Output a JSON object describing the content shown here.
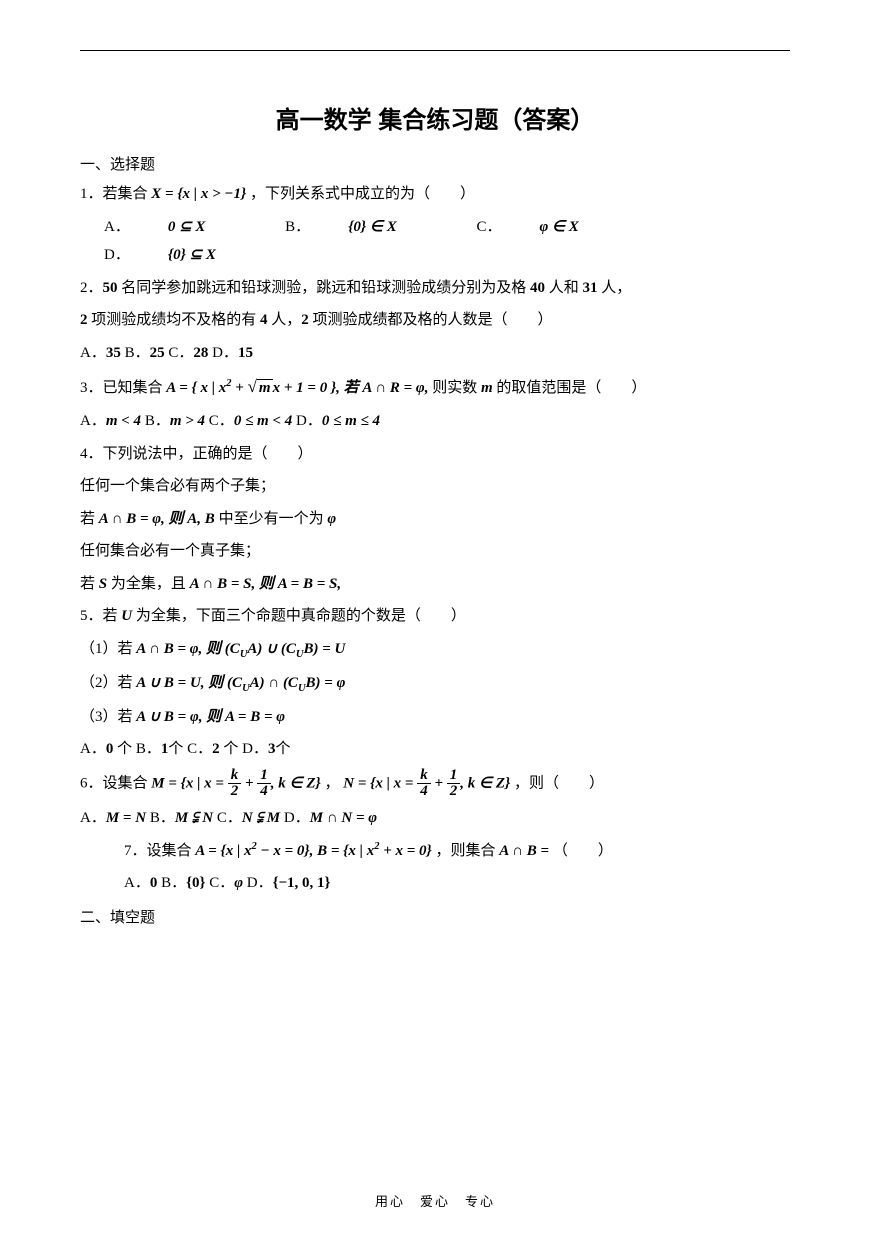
{
  "title": "高一数学 集合练习题（答案）",
  "section1": "一、选择题",
  "q1": {
    "stem_a": "1．若集合 ",
    "expr": "X = {x | x > −1}",
    "stem_b": "，下列关系式中成立的为（　　）",
    "A": "A．",
    "A_expr": "0 ⊆ X",
    "B": "B．",
    "B_expr": "{0} ∈ X",
    "C": "C．",
    "C_expr": "φ ∈ X",
    "D": "D．",
    "D_expr": "{0} ⊆ X"
  },
  "q2": {
    "line1_a": "2．",
    "line1_b": "50",
    "line1_c": " 名同学参加跳远和铅球测验，跳远和铅球测验成绩分别为及格 ",
    "line1_d": "40",
    "line1_e": " 人和 ",
    "line1_f": "31",
    "line1_g": " 人，",
    "line2_a": "2",
    "line2_b": " 项测验成绩均不及格的有 ",
    "line2_c": "4",
    "line2_d": " 人，",
    "line2_e": "2",
    "line2_f": " 项测验成绩都及格的人数是（　　）",
    "A": "A．",
    "Av": "35",
    "B": "B．",
    "Bv": "25",
    "C": "C．",
    "Cv": "28",
    "D": "D．",
    "Dv": "15"
  },
  "q3": {
    "stem_a": "3．已知集合 ",
    "expr1_a": "A = { x | x",
    "expr1_b": " + ",
    "expr1_c": "x + 1 = 0 }, 若 A ∩ R = φ,",
    "stem_b": " 则实数 ",
    "m": "m",
    "stem_c": " 的取值范围是（　　）",
    "A": "A．",
    "Ae": "m < 4",
    "B": "B．",
    "Be": "m > 4",
    "C": "C．",
    "Ce": "0 ≤ m < 4",
    "D": "D．",
    "De": "0 ≤ m ≤ 4"
  },
  "q4": {
    "stem": "4．下列说法中，正确的是（　　）",
    "p1": "任何一个集合必有两个子集；",
    "p2_a": "若 ",
    "p2_e": "A ∩ B = φ, 则 A, B",
    "p2_b": " 中至少有一个为 ",
    "p2_phi": "φ",
    "p3": "任何集合必有一个真子集；",
    "p4_a": "若 ",
    "p4_s": "S",
    "p4_b": " 为全集，且 ",
    "p4_e": "A ∩ B = S, 则 A = B = S,"
  },
  "q5": {
    "stem_a": "5．若 ",
    "U": "U",
    "stem_b": " 为全集，下面三个命题中真命题的个数是（　　）",
    "s1_a": "（1）若 ",
    "s1_e": "A ∩ B = φ, 则 (C",
    "s1_u1": "U",
    "s1_m": "A) ∪ (C",
    "s1_u2": "U",
    "s1_r": "B) = U",
    "s2_a": "（2）若 ",
    "s2_e": "A ∪ B = U, 则 (C",
    "s2_u1": "U",
    "s2_m": "A) ∩ (C",
    "s2_u2": "U",
    "s2_r": "B) = φ",
    "s3_a": "（3）若 ",
    "s3_e": "A ∪ B = φ,  则 A = B = φ",
    "A": "A．",
    "Av": "0",
    "At": " 个",
    "B": "B．",
    "Bv": "1",
    "Bt": "个",
    "C": "C．",
    "Cv": "2",
    "Ct": " 个",
    "D": "D．",
    "Dv": "3",
    "Dt": "个"
  },
  "q6": {
    "stem_a": "6．设集合 ",
    "M": "M = {x | x = ",
    "Mf1n": "k",
    "Mf1d": "2",
    "Mplus": " + ",
    "Mf2n": "1",
    "Mf2d": "4",
    "Mtail": ", k ∈ Z}",
    "sep": "，  ",
    "N": "N = {x | x = ",
    "Nf1n": "k",
    "Nf1d": "4",
    "Nplus": " + ",
    "Nf2n": "1",
    "Nf2d": "2",
    "Ntail": ", k ∈ Z}",
    "stem_b": " ，则（　　）",
    "A": "A．",
    "Ae": "M = N",
    "B": "B．",
    "Be": "M ⫋ N",
    "C": "C．",
    "Ce": "N ⫋ M",
    "D": "D．",
    "De": "M ∩ N = φ"
  },
  "q7": {
    "stem_a": "7．设集合 ",
    "e1": "A = {x | x",
    "e1b": " − x = 0}, B = {x | x",
    "e1c": " + x = 0}",
    "stem_b": " ，则集合 ",
    "e2": "A ∩ B =",
    "stem_c": " （　　）",
    "A": "A．",
    "Av": "0",
    "B": "B．",
    "Bv": "{0}",
    "C": "C．",
    "Cv": "φ",
    "D": "D．",
    "Dv": "{−1, 0, 1}"
  },
  "section2": "二、填空题",
  "footer": "用心　爱心　专心"
}
